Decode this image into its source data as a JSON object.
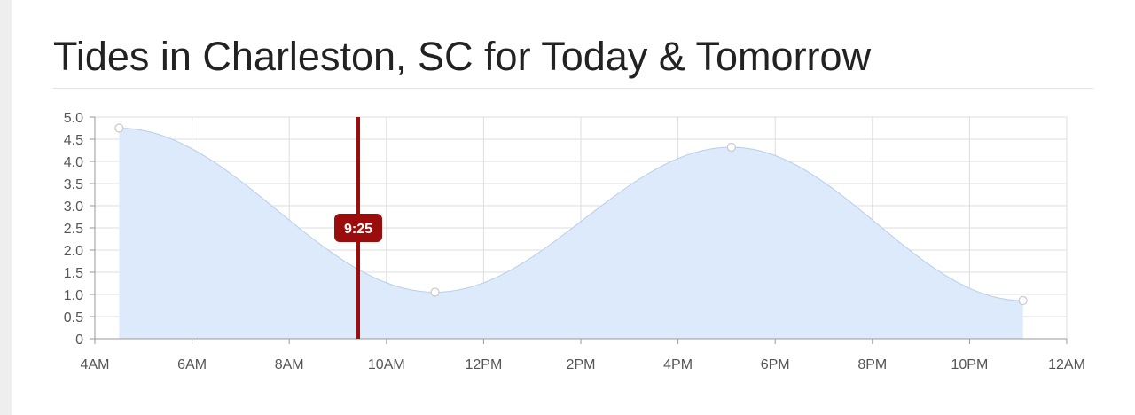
{
  "page": {
    "title": "Tides in Charleston, SC for Today & Tomorrow"
  },
  "colors": {
    "fill": "#dceafc",
    "line": "#b9cfe6",
    "grid": "#dddddd",
    "axis": "#999999",
    "marker": "#9b0c0c",
    "point_fill": "#ffffff",
    "point_stroke": "#c9c9c9"
  },
  "chart_data": {
    "type": "area",
    "title": "Tides in Charleston, SC for Today & Tomorrow",
    "xlabel": "",
    "ylabel": "",
    "x_ticks": [
      "4AM",
      "6AM",
      "8AM",
      "10AM",
      "12PM",
      "2PM",
      "4PM",
      "6PM",
      "8PM",
      "10PM",
      "12AM"
    ],
    "y_ticks": [
      "0",
      "0.5",
      "1.0",
      "1.5",
      "2.0",
      "2.5",
      "3.0",
      "3.5",
      "4.0",
      "4.5",
      "5.0"
    ],
    "xlim_hours": [
      4,
      24
    ],
    "ylim": [
      0,
      5
    ],
    "grid": true,
    "series": [
      {
        "points": [
          {
            "x_hours": 4.5,
            "y": 4.75
          },
          {
            "x_hours": 11.0,
            "y": 1.05
          },
          {
            "x_hours": 17.1,
            "y": 4.32
          },
          {
            "x_hours": 23.1,
            "y": 0.86
          }
        ]
      }
    ],
    "current_time_marker": {
      "x_hours": 9.42,
      "label": "9:25"
    }
  }
}
